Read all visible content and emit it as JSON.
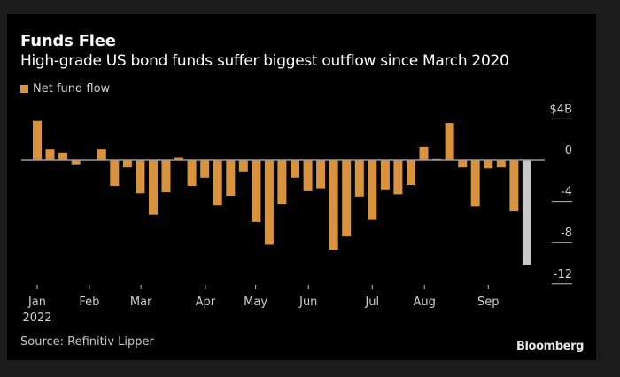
{
  "chart_data": {
    "type": "bar",
    "title": "Funds Flee",
    "subtitle": "High-grade US bond funds suffer biggest outflow since March 2020",
    "legend": [
      {
        "label": "Net fund flow",
        "color": "#d9933f"
      }
    ],
    "legend_placement": "top-left",
    "xlabel": "",
    "ylabel": "",
    "ylim": [
      -12,
      4
    ],
    "y_ticks": [
      {
        "value": 4,
        "label": "$4B"
      },
      {
        "value": 0,
        "label": "0"
      },
      {
        "value": -4,
        "label": "-4"
      },
      {
        "value": -8,
        "label": "-8"
      },
      {
        "value": -12,
        "label": "-12"
      }
    ],
    "x_ticks": [
      {
        "index": 0,
        "label": "Jan",
        "sublabel": "2022"
      },
      {
        "index": 4.05,
        "label": "Feb"
      },
      {
        "index": 8.05,
        "label": "Mar"
      },
      {
        "index": 13.05,
        "label": "Apr"
      },
      {
        "index": 16.95,
        "label": "May"
      },
      {
        "index": 21.05,
        "label": "Jun"
      },
      {
        "index": 26,
        "label": "Jul"
      },
      {
        "index": 30.05,
        "label": "Aug"
      },
      {
        "index": 35,
        "label": "Sep"
      }
    ],
    "values": [
      3.8,
      1.1,
      0.7,
      -0.4,
      0,
      1.1,
      -2.5,
      -0.7,
      -3.2,
      -5.3,
      -3.1,
      0.3,
      -2.5,
      -1.7,
      -4.4,
      -3.5,
      -1.1,
      -6.0,
      -8.2,
      -4.3,
      -1.7,
      -3.0,
      -2.8,
      -8.7,
      -7.4,
      -3.6,
      -5.8,
      -2.9,
      -3.3,
      -2.4,
      1.3,
      0.1,
      3.6,
      -0.7,
      -4.5,
      -0.8,
      -0.7,
      -4.9,
      -10.2
    ],
    "highlight_last": true,
    "colors": {
      "bar": "#d9933f",
      "highlight": "#c8c8c8",
      "zero_line": "#9a9a9a",
      "text": "#d0d0d0"
    },
    "grid": false
  },
  "source": "Source: Refinitiv Lipper",
  "brand": "Bloomberg"
}
